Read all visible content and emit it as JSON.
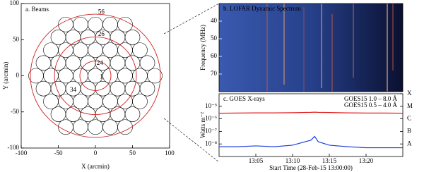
{
  "chart_data": [
    {
      "type": "beams",
      "title": "a. Beams",
      "xlabel": "X (arcmin)",
      "ylabel": "Y (arcmin)",
      "xlim": [
        -100,
        100
      ],
      "ylim": [
        -100,
        100
      ],
      "xticks": [
        -100,
        -50,
        0,
        50,
        100
      ],
      "yticks": [
        -100,
        -50,
        0,
        50,
        100
      ],
      "beam_labels": [
        {
          "text": "56",
          "x": 8,
          "y": 88
        },
        {
          "text": "26",
          "x": 8,
          "y": 57
        },
        {
          "text": "24",
          "x": 6,
          "y": 17
        },
        {
          "text": "1",
          "x": 8,
          "y": -2
        },
        {
          "text": "34",
          "x": -30,
          "y": -20
        }
      ]
    },
    {
      "type": "spectrum",
      "title": "b. LOFAR Dynamic Spectrum",
      "ylabel": "Frequency (MHz)",
      "ylim": [
        30,
        80
      ],
      "yticks": [
        40,
        50,
        60,
        70
      ]
    },
    {
      "type": "line",
      "title": "c. GOES X-rays",
      "xlabel": "Start Time (28-Feb-15 13:00:00)",
      "ylabel": "Watts m⁻²",
      "log": true,
      "xlim": [
        0,
        25
      ],
      "ylim": [
        1e-09,
        0.0001
      ],
      "xticks": [
        {
          "value": 5,
          "label": "13:05"
        },
        {
          "value": 10,
          "label": "13:10"
        },
        {
          "value": 15,
          "label": "13:15"
        },
        {
          "value": 20,
          "label": "13:20"
        }
      ],
      "yticks": [
        {
          "value": 1e-05,
          "label": "10⁻⁵"
        },
        {
          "value": 1e-06,
          "label": "10⁻⁶"
        },
        {
          "value": 1e-07,
          "label": "10⁻⁷"
        },
        {
          "value": 1e-08,
          "label": "10⁻⁸"
        }
      ],
      "class_ticks": [
        {
          "value": 0.0001,
          "label": "X"
        },
        {
          "value": 1e-05,
          "label": "M"
        },
        {
          "value": 1e-06,
          "label": "C"
        },
        {
          "value": 1e-07,
          "label": "B"
        },
        {
          "value": 1e-08,
          "label": "A"
        }
      ],
      "x": [
        0,
        2.5,
        5,
        7.5,
        10,
        12.5,
        13,
        13.5,
        15,
        17.5,
        20,
        22.5,
        25
      ],
      "series": [
        {
          "name": "GOES15 1.0 – 8.0 Å",
          "color": "#e02020",
          "values": [
            2.8e-06,
            2.9e-06,
            3e-06,
            3e-06,
            3.1e-06,
            3.3e-06,
            3.4e-06,
            3.3e-06,
            3.2e-06,
            3e-06,
            2.9e-06,
            2.9e-06,
            2.8e-06
          ]
        },
        {
          "name": "GOES15 0.5 – 4.0 Å",
          "color": "#2040e0",
          "values": [
            6e-09,
            6e-09,
            7e-09,
            6e-09,
            8e-09,
            2e-08,
            4e-08,
            1.5e-08,
            8e-09,
            6e-09,
            5e-09,
            5e-09,
            5e-09
          ]
        }
      ]
    }
  ]
}
